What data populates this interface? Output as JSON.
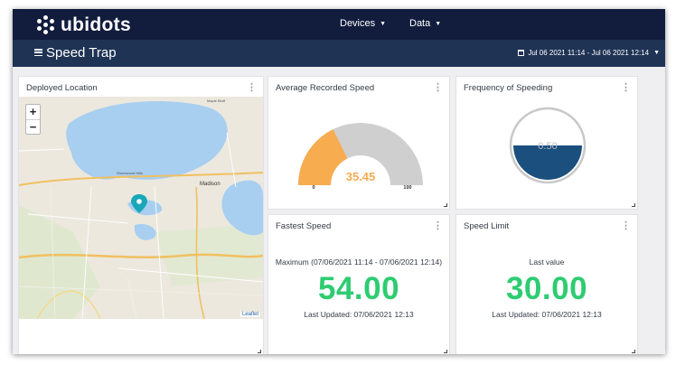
{
  "app": {
    "brand": "ubidots"
  },
  "nav": {
    "devices": "Devices",
    "data": "Data"
  },
  "dashboard": {
    "title": "Speed Trap",
    "date_range": "Jul 06 2021 11:14 - Jul 06 2021 12:14"
  },
  "icons": {
    "menu": "hamburger-icon",
    "calendar": "calendar-icon",
    "caret": "caret-down-icon",
    "widget_menu": "kebab-icon",
    "pin": "map-pin-icon"
  },
  "widgets": {
    "map": {
      "title": "Deployed Location",
      "zoom_in": "+",
      "zoom_out": "−",
      "attribution": "Leaflet",
      "labels": {
        "madison": "Madison",
        "shorewood": "Shorewood Hills",
        "maple_bluff": "Maple Bluff"
      }
    },
    "gauge": {
      "title": "Average Recorded Speed",
      "value": "35.45",
      "min": "0",
      "max": "100",
      "fill_fraction": 0.3545
    },
    "frequency": {
      "title": "Frequency of Speeding",
      "value": "0.50",
      "fill_fraction": 0.5
    },
    "fastest": {
      "title": "Fastest Speed",
      "caption": "Maximum (07/06/2021 11:14 - 07/06/2021 12:14)",
      "value": "54.00",
      "updated": "Last Updated: 07/06/2021 12:13"
    },
    "limit": {
      "title": "Speed Limit",
      "caption": "Last value",
      "value": "30.00",
      "updated": "Last Updated: 07/06/2021 12:13"
    }
  },
  "colors": {
    "topbar": "#121c3d",
    "subbar": "#1f3355",
    "gauge_fill": "#f6ac4f",
    "gauge_track": "#cfcfcf",
    "tank_fill": "#1a4f7e",
    "value_green": "#2ecc71",
    "water": "#a8cef0",
    "pin": "#1aa7b8"
  }
}
